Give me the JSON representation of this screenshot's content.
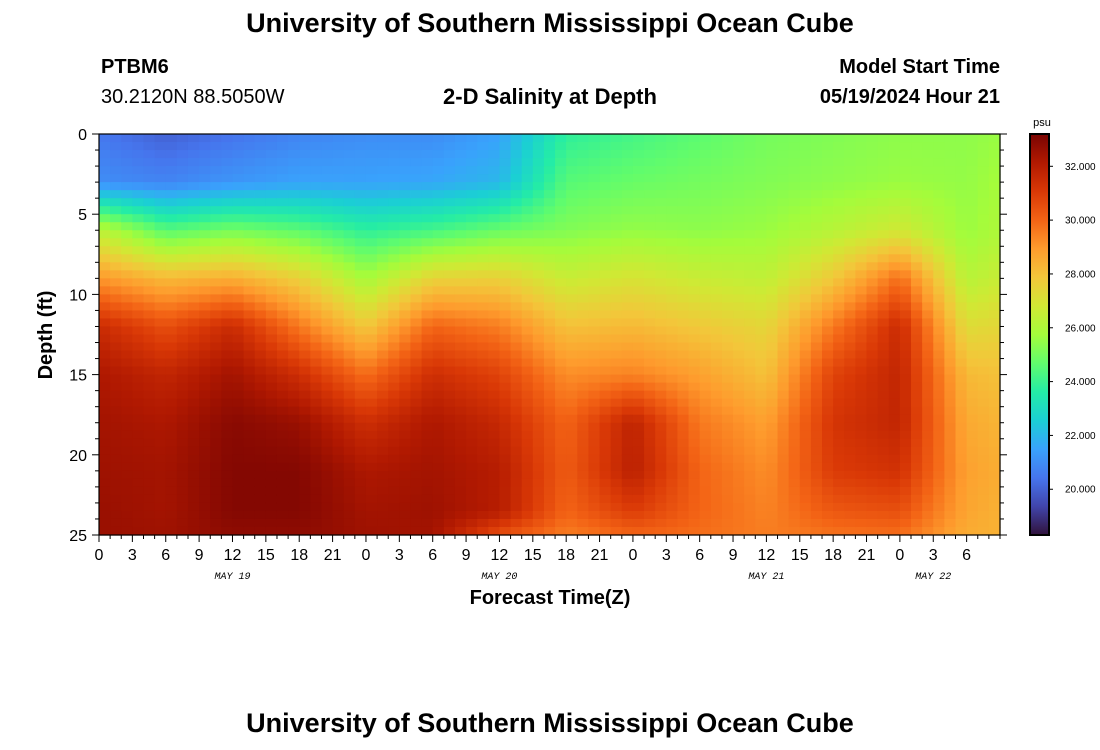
{
  "header": {
    "title": "University of Southern Mississippi Ocean Cube",
    "station_id": "PTBM6",
    "coordinates": "30.2120N  88.5050W",
    "subtitle": "2-D Salinity at Depth",
    "model_start_label": "Model Start Time",
    "model_start_value": "05/19/2024 Hour 21"
  },
  "footer": {
    "title": "University of Southern Mississippi Ocean Cube"
  },
  "colors": {
    "scale": [
      "#30123b",
      "#4145ab",
      "#4675ed",
      "#39a2fc",
      "#1bcfd4",
      "#24eca6",
      "#61fc6c",
      "#a4fc3b",
      "#d1e834",
      "#f3c63a",
      "#fe9b2d",
      "#f36315",
      "#d93806",
      "#b11901",
      "#7a0402"
    ]
  },
  "chart_data": {
    "type": "heatmap",
    "title": "2-D Salinity at Depth",
    "xlabel": "Forecast Time(Z)",
    "ylabel": "Depth (ft)",
    "x_hours_from_start": [
      0,
      81
    ],
    "xlim": [
      0,
      81
    ],
    "ylim": [
      0,
      25
    ],
    "x_tick_labels": [
      "0",
      "3",
      "6",
      "9",
      "12",
      "15",
      "18",
      "21",
      "0",
      "3",
      "6",
      "9",
      "12",
      "15",
      "18",
      "21",
      "0",
      "3",
      "6",
      "9",
      "12",
      "15",
      "18",
      "21",
      "0",
      "3",
      "6"
    ],
    "x_tick_hours": [
      0,
      3,
      6,
      9,
      12,
      15,
      18,
      21,
      24,
      27,
      30,
      33,
      36,
      39,
      42,
      45,
      48,
      51,
      54,
      57,
      60,
      63,
      66,
      69,
      72,
      75,
      78
    ],
    "date_labels": [
      {
        "label": "MAY 19",
        "hour": 12
      },
      {
        "label": "MAY 20",
        "hour": 36
      },
      {
        "label": "MAY 21",
        "hour": 60
      },
      {
        "label": "MAY 22",
        "hour": 75
      }
    ],
    "y_ticks": [
      0,
      5,
      10,
      15,
      20,
      25
    ],
    "colorbar": {
      "unit": "psu",
      "vmin": 18.3,
      "vmax": 33.2,
      "ticks": [
        20.0,
        22.0,
        24.0,
        26.0,
        28.0,
        30.0,
        32.0
      ],
      "tick_labels": [
        "20.000",
        "22.000",
        "24.000",
        "26.000",
        "28.000",
        "30.000",
        "32.000"
      ]
    },
    "grid_hours": [
      0,
      6,
      12,
      18,
      24,
      30,
      36,
      42,
      48,
      54,
      60,
      66,
      72,
      78,
      81
    ],
    "grid_depths": [
      0,
      3,
      6,
      9,
      12,
      15,
      18,
      21,
      23.5,
      25
    ],
    "salinity_profiles": [
      [
        20.5,
        21.0,
        26.3,
        29.0,
        31.5,
        32.2,
        32.4,
        32.5,
        32.6,
        32.6
      ],
      [
        20.0,
        20.8,
        24.5,
        28.2,
        30.5,
        31.7,
        32.2,
        32.4,
        32.4,
        32.5
      ],
      [
        20.4,
        21.2,
        25.0,
        28.5,
        31.5,
        32.4,
        32.9,
        33.0,
        33.0,
        32.8
      ],
      [
        20.8,
        21.5,
        24.6,
        27.6,
        29.6,
        31.4,
        32.6,
        33.0,
        33.0,
        32.8
      ],
      [
        21.0,
        21.5,
        23.8,
        25.8,
        27.8,
        29.8,
        31.4,
        32.2,
        32.4,
        32.5
      ],
      [
        21.0,
        21.6,
        24.2,
        27.5,
        30.0,
        31.4,
        32.2,
        32.4,
        32.5,
        32.4
      ],
      [
        21.5,
        22.0,
        24.8,
        27.6,
        29.5,
        30.8,
        31.6,
        32.0,
        32.0,
        30.5
      ],
      [
        23.8,
        24.5,
        25.2,
        26.6,
        28.0,
        29.2,
        30.0,
        30.2,
        30.0,
        29.5
      ],
      [
        24.2,
        24.8,
        25.5,
        27.0,
        28.2,
        29.4,
        31.8,
        31.9,
        31.0,
        30.0
      ],
      [
        24.6,
        25.0,
        25.4,
        26.6,
        27.8,
        28.8,
        29.6,
        30.0,
        30.0,
        29.8
      ],
      [
        25.0,
        25.2,
        25.6,
        26.4,
        27.4,
        28.0,
        28.8,
        29.2,
        29.4,
        29.5
      ],
      [
        25.2,
        25.4,
        26.2,
        27.8,
        29.6,
        30.8,
        31.2,
        31.0,
        30.3,
        29.7
      ],
      [
        25.4,
        25.6,
        26.8,
        29.8,
        31.5,
        31.7,
        31.7,
        31.3,
        30.5,
        29.8
      ],
      [
        25.4,
        25.5,
        25.6,
        26.2,
        27.2,
        28.2,
        28.6,
        28.8,
        28.7,
        28.5
      ],
      [
        25.6,
        25.8,
        26.0,
        26.6,
        27.4,
        28.0,
        28.3,
        28.5,
        28.4,
        28.4
      ]
    ]
  }
}
